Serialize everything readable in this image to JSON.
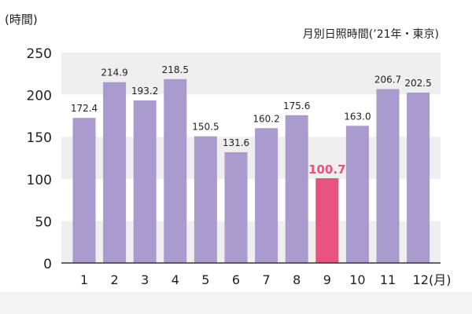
{
  "chart_data": {
    "type": "bar",
    "title": "月別日照時間(’21年・東京)",
    "ylabel": "(時間)",
    "x_unit_label": "12(月)",
    "categories": [
      "1",
      "2",
      "3",
      "4",
      "5",
      "6",
      "7",
      "8",
      "9",
      "10",
      "11",
      "12"
    ],
    "values": [
      172.4,
      214.9,
      193.2,
      218.5,
      150.5,
      131.6,
      160.2,
      175.6,
      100.7,
      163.0,
      206.7,
      202.5
    ],
    "value_labels": [
      "172.4",
      "214.9",
      "193.2",
      "218.5",
      "150.5",
      "131.6",
      "160.2",
      "175.6",
      "100.7",
      "163.0",
      "206.7",
      "202.5"
    ],
    "highlight_index": 8,
    "ylim": [
      0,
      250
    ],
    "yticks": [
      0,
      50,
      100,
      150,
      200,
      250
    ],
    "grid": true,
    "colors": {
      "bar": "#a99bce",
      "highlight": "#e8527f",
      "band": "#efefef",
      "axis": "#333333",
      "text": "#222222"
    }
  }
}
